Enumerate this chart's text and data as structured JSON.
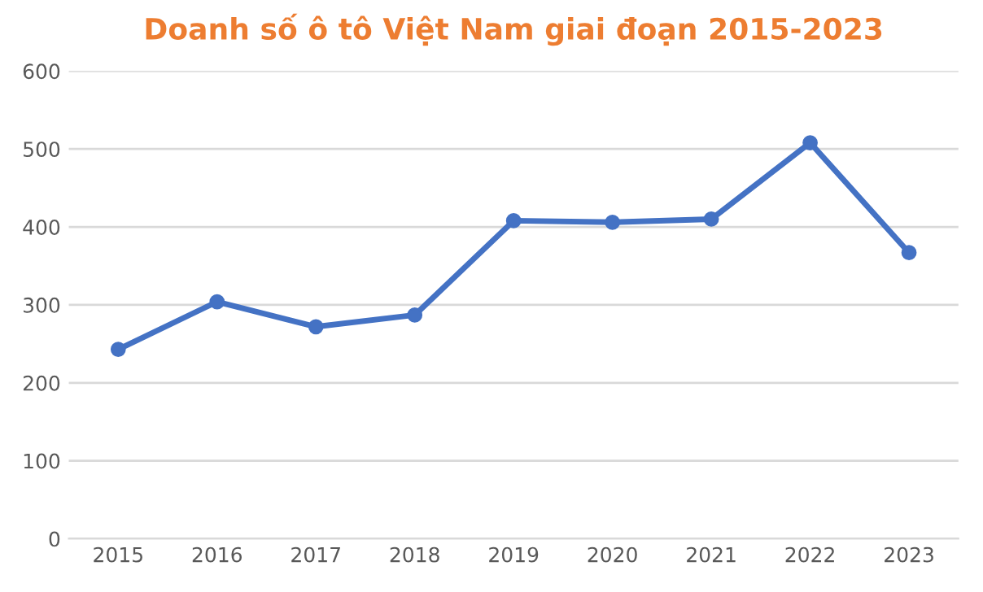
{
  "chart_data": {
    "type": "line",
    "title": "Doanh số ô tô Việt Nam giai đoạn 2015-2023",
    "categories": [
      "2015",
      "2016",
      "2017",
      "2018",
      "2019",
      "2020",
      "2021",
      "2022",
      "2023"
    ],
    "series": [
      {
        "color": "#4472c4",
        "values": [
          243,
          304,
          272,
          287,
          408,
          406,
          410,
          508,
          367
        ]
      }
    ],
    "ylim": [
      0,
      600
    ],
    "yticks": [
      0,
      100,
      200,
      300,
      400,
      500,
      600
    ],
    "grid": "y",
    "marker": "circle",
    "line_style": "solid",
    "legend": false
  }
}
